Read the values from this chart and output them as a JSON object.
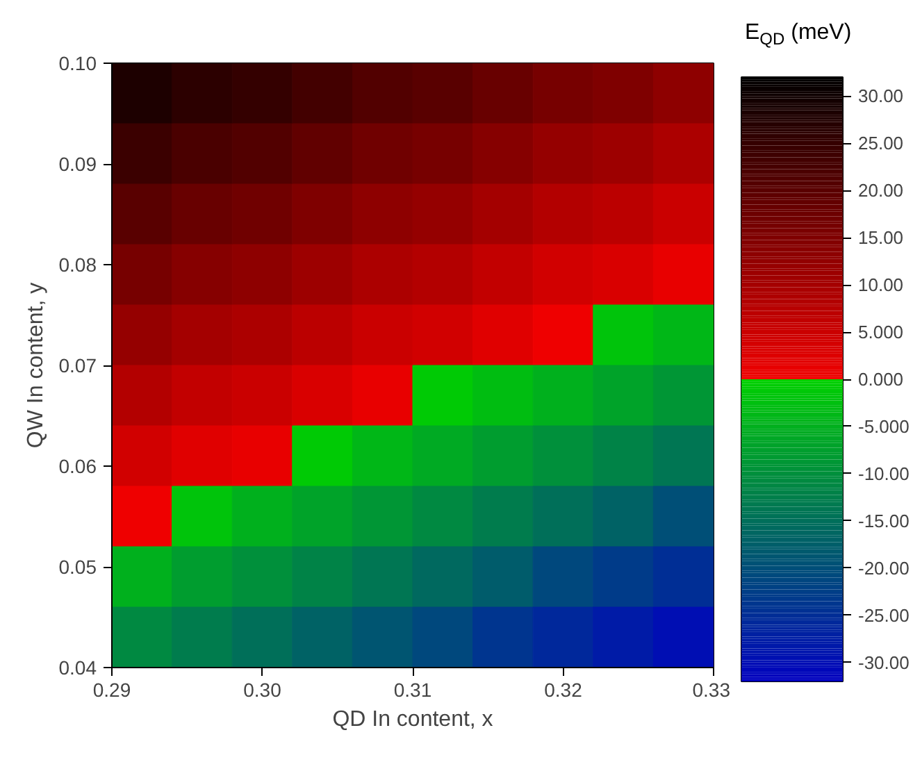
{
  "chart_data": {
    "type": "heatmap",
    "xlabel": "QD In content, x",
    "ylabel": "QW In content, y",
    "clabel": "E$_{QD}$ (meV)",
    "x": [
      0.292,
      0.296,
      0.3,
      0.304,
      0.308,
      0.312,
      0.316,
      0.32,
      0.324,
      0.328
    ],
    "y": [
      0.097,
      0.091,
      0.085,
      0.079,
      0.073,
      0.067,
      0.061,
      0.055,
      0.049,
      0.043
    ],
    "cells": [
      [
        28,
        26,
        25,
        23,
        21,
        20,
        18,
        16,
        15,
        13
      ],
      [
        24,
        22,
        21,
        19,
        17,
        16,
        14,
        12,
        11,
        9
      ],
      [
        20,
        18,
        17,
        15,
        13,
        12,
        10,
        8,
        7,
        5
      ],
      [
        16,
        14,
        13,
        11,
        9,
        8,
        6,
        4,
        3,
        1
      ],
      [
        12,
        10,
        9,
        7,
        5,
        4,
        2,
        0,
        -2,
        -4
      ],
      [
        8,
        6,
        5,
        3,
        1,
        -1,
        -3,
        -5,
        -7,
        -9
      ],
      [
        4,
        2,
        1,
        -1,
        -4,
        -6,
        -8,
        -10,
        -12,
        -14
      ],
      [
        0,
        -2,
        -5,
        -7,
        -9,
        -11,
        -13,
        -15,
        -17,
        -20
      ],
      [
        -5,
        -8,
        -10,
        -12,
        -14,
        -16,
        -18,
        -21,
        -23,
        -25
      ],
      [
        -11,
        -13,
        -15,
        -17,
        -19,
        -21,
        -24,
        -26,
        -28,
        -30
      ]
    ],
    "colors": [
      "#0000c0",
      "#00d000",
      "#f00000",
      "#000000"
    ],
    "xlim": [
      0.29,
      0.33
    ],
    "xticks": [
      {
        "value": 0.29,
        "label": "0.29"
      },
      {
        "value": 0.3,
        "label": "0.30"
      },
      {
        "value": 0.31,
        "label": "0.31"
      },
      {
        "value": 0.32,
        "label": "0.32"
      },
      {
        "value": 0.33,
        "label": "0.33"
      }
    ],
    "ylim": [
      0.04,
      0.1
    ],
    "yticks": [
      {
        "value": 0.04,
        "label": "0.04"
      },
      {
        "value": 0.05,
        "label": "0.05"
      },
      {
        "value": 0.06,
        "label": "0.06"
      },
      {
        "value": 0.07,
        "label": "0.07"
      },
      {
        "value": 0.08,
        "label": "0.08"
      },
      {
        "value": 0.09,
        "label": "0.09"
      },
      {
        "value": 0.1,
        "label": "0.10"
      }
    ],
    "clim": [
      -32,
      32
    ],
    "cticks": [
      {
        "value": 30,
        "label": "30.00"
      },
      {
        "value": 25,
        "label": "25.00"
      },
      {
        "value": 20,
        "label": "20.00"
      },
      {
        "value": 15,
        "label": "15.00"
      },
      {
        "value": 10,
        "label": "10.00"
      },
      {
        "value": 5,
        "label": "5.000"
      },
      {
        "value": 0,
        "label": "0.000"
      },
      {
        "value": -5,
        "label": "-5.000"
      },
      {
        "value": -10,
        "label": "-10.00"
      },
      {
        "value": -15,
        "label": "-15.00"
      },
      {
        "value": -20,
        "label": "-20.00"
      },
      {
        "value": -25,
        "label": "-25.00"
      },
      {
        "value": -30,
        "label": "-30.00"
      }
    ]
  }
}
